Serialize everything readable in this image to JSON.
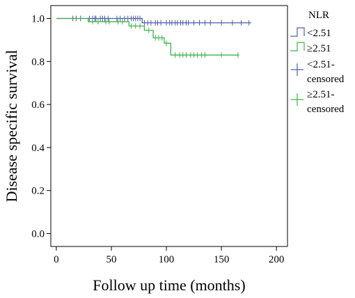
{
  "chart_data": {
    "type": "line",
    "subtype": "kaplan-meier",
    "xlabel": "Follow up time (months)",
    "ylabel": "Disease specific survival",
    "xlim": [
      -5,
      210
    ],
    "ylim": [
      -0.06,
      1.06
    ],
    "xticks": [
      0,
      50,
      100,
      150,
      200
    ],
    "yticks": [
      0.0,
      0.2,
      0.4,
      0.6,
      0.8,
      1.0
    ],
    "xtick_labels": [
      "0",
      "50",
      "100",
      "150",
      "200"
    ],
    "ytick_labels": [
      "0.0",
      "0.2",
      "0.4",
      "0.6",
      "0.8",
      "1.0"
    ],
    "grid": false,
    "legend_title": "NLR",
    "legend_position": "right",
    "series": [
      {
        "name": "<2.51",
        "color": "#4a5ea8",
        "steps": [
          [
            0,
            1.0
          ],
          [
            78,
            0.98
          ],
          [
            177,
            0.98
          ]
        ],
        "censored": [
          [
            15,
            1.0
          ],
          [
            18,
            1.0
          ],
          [
            22,
            1.0
          ],
          [
            30,
            1.0
          ],
          [
            33,
            1.0
          ],
          [
            35,
            1.0
          ],
          [
            36,
            1.0
          ],
          [
            40,
            1.0
          ],
          [
            42,
            1.0
          ],
          [
            44,
            1.0
          ],
          [
            47,
            1.0
          ],
          [
            55,
            1.0
          ],
          [
            58,
            1.0
          ],
          [
            62,
            1.0
          ],
          [
            65,
            1.0
          ],
          [
            68,
            1.0
          ],
          [
            70,
            1.0
          ],
          [
            72,
            1.0
          ],
          [
            74,
            1.0
          ],
          [
            76,
            1.0
          ],
          [
            80,
            0.98
          ],
          [
            83,
            0.98
          ],
          [
            86,
            0.98
          ],
          [
            90,
            0.98
          ],
          [
            92,
            0.98
          ],
          [
            95,
            0.98
          ],
          [
            100,
            0.98
          ],
          [
            103,
            0.98
          ],
          [
            105,
            0.98
          ],
          [
            108,
            0.98
          ],
          [
            110,
            0.98
          ],
          [
            113,
            0.98
          ],
          [
            115,
            0.98
          ],
          [
            118,
            0.98
          ],
          [
            120,
            0.98
          ],
          [
            125,
            0.98
          ],
          [
            130,
            0.98
          ],
          [
            135,
            0.98
          ],
          [
            140,
            0.98
          ],
          [
            150,
            0.98
          ],
          [
            160,
            0.98
          ],
          [
            168,
            0.98
          ],
          [
            175,
            0.98
          ]
        ]
      },
      {
        "name": "≥2.51",
        "color": "#3cb34a",
        "steps": [
          [
            0,
            1.0
          ],
          [
            29,
            0.985
          ],
          [
            66,
            0.965
          ],
          [
            80,
            0.945
          ],
          [
            88,
            0.91
          ],
          [
            98,
            0.885
          ],
          [
            104,
            0.83
          ],
          [
            166,
            0.83
          ]
        ],
        "censored": [
          [
            33,
            0.985
          ],
          [
            38,
            0.985
          ],
          [
            45,
            0.985
          ],
          [
            48,
            0.985
          ],
          [
            56,
            0.985
          ],
          [
            60,
            0.985
          ],
          [
            68,
            0.965
          ],
          [
            72,
            0.965
          ],
          [
            76,
            0.965
          ],
          [
            84,
            0.945
          ],
          [
            90,
            0.91
          ],
          [
            93,
            0.91
          ],
          [
            96,
            0.91
          ],
          [
            100,
            0.885
          ],
          [
            108,
            0.83
          ],
          [
            112,
            0.83
          ],
          [
            115,
            0.83
          ],
          [
            118,
            0.83
          ],
          [
            122,
            0.83
          ],
          [
            125,
            0.83
          ],
          [
            128,
            0.83
          ],
          [
            132,
            0.83
          ],
          [
            135,
            0.83
          ],
          [
            150,
            0.83
          ],
          [
            165,
            0.83
          ]
        ]
      }
    ],
    "legend": [
      {
        "kind": "step",
        "series": 0,
        "label": "<2.51"
      },
      {
        "kind": "step",
        "series": 1,
        "label": "≥2.51"
      },
      {
        "kind": "censor",
        "series": 0,
        "label_lines": [
          "<2.51-",
          "censored"
        ]
      },
      {
        "kind": "censor",
        "series": 1,
        "label_lines": [
          "≥2.51-",
          "censored"
        ]
      }
    ]
  }
}
